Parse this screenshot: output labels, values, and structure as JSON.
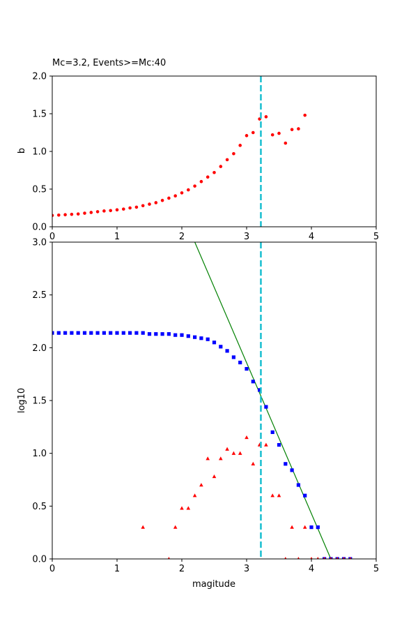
{
  "chart_data": [
    {
      "type": "scatter",
      "title": "Mc=3.2, Events>=Mc:40",
      "xlabel": "",
      "ylabel": "b",
      "xlim": [
        0,
        5
      ],
      "ylim": [
        0,
        2
      ],
      "xticks": [
        "0",
        "1",
        "2",
        "3",
        "4",
        "5"
      ],
      "yticks": [
        "0.0",
        "0.5",
        "1.0",
        "1.5",
        "2.0"
      ],
      "vline": {
        "x": 3.22,
        "color": "#17becf",
        "style": "dashed"
      },
      "series": [
        {
          "marker": "circle",
          "color": "#ff0000",
          "x": [
            0.0,
            0.1,
            0.2,
            0.3,
            0.4,
            0.5,
            0.6,
            0.7,
            0.8,
            0.9,
            1.0,
            1.1,
            1.2,
            1.3,
            1.4,
            1.5,
            1.6,
            1.7,
            1.8,
            1.9,
            2.0,
            2.1,
            2.2,
            2.3,
            2.4,
            2.5,
            2.6,
            2.7,
            2.8,
            2.9,
            3.0,
            3.1,
            3.2,
            3.3,
            3.4,
            3.5,
            3.6,
            3.7,
            3.8,
            3.9
          ],
          "y": [
            0.15,
            0.155,
            0.16,
            0.165,
            0.17,
            0.18,
            0.19,
            0.2,
            0.21,
            0.215,
            0.225,
            0.235,
            0.25,
            0.26,
            0.28,
            0.3,
            0.32,
            0.35,
            0.38,
            0.41,
            0.45,
            0.49,
            0.54,
            0.6,
            0.66,
            0.72,
            0.8,
            0.89,
            0.97,
            1.08,
            1.21,
            1.25,
            1.43,
            1.46,
            1.22,
            1.24,
            1.11,
            1.29,
            1.3,
            1.48
          ]
        }
      ]
    },
    {
      "type": "scatter",
      "title": "",
      "xlabel": "magitude",
      "ylabel": "log10",
      "xlim": [
        0,
        5
      ],
      "ylim": [
        0,
        3
      ],
      "xticks": [
        "0",
        "1",
        "2",
        "3",
        "4",
        "5"
      ],
      "yticks": [
        "0.0",
        "0.5",
        "1.0",
        "1.5",
        "2.0",
        "2.5",
        "3.0"
      ],
      "vline": {
        "x": 3.22,
        "color": "#17becf",
        "style": "dashed"
      },
      "fit_line": {
        "x": [
          2.2,
          4.3
        ],
        "y": [
          3.0,
          0.0
        ],
        "color": "#008000"
      },
      "series": [
        {
          "marker": "square",
          "color": "#0000ff",
          "x": [
            0.0,
            0.1,
            0.2,
            0.3,
            0.4,
            0.5,
            0.6,
            0.7,
            0.8,
            0.9,
            1.0,
            1.1,
            1.2,
            1.3,
            1.4,
            1.5,
            1.6,
            1.7,
            1.8,
            1.9,
            2.0,
            2.1,
            2.2,
            2.3,
            2.4,
            2.5,
            2.6,
            2.7,
            2.8,
            2.9,
            3.0,
            3.1,
            3.2,
            3.3,
            3.4,
            3.5,
            3.6,
            3.7,
            3.8,
            3.9,
            4.0,
            4.1,
            4.2,
            4.3,
            4.4,
            4.5,
            4.6
          ],
          "y": [
            2.14,
            2.14,
            2.14,
            2.14,
            2.14,
            2.14,
            2.14,
            2.14,
            2.14,
            2.14,
            2.14,
            2.14,
            2.14,
            2.14,
            2.14,
            2.13,
            2.13,
            2.13,
            2.13,
            2.12,
            2.12,
            2.11,
            2.1,
            2.09,
            2.08,
            2.05,
            2.01,
            1.97,
            1.91,
            1.86,
            1.8,
            1.68,
            1.6,
            1.44,
            1.2,
            1.08,
            0.9,
            0.84,
            0.7,
            0.6,
            0.3,
            0.3,
            0.0,
            0.0,
            0.0,
            0.0,
            0.0
          ]
        },
        {
          "marker": "triangle",
          "color": "#ff0000",
          "x": [
            1.4,
            1.8,
            1.9,
            2.0,
            2.1,
            2.2,
            2.3,
            2.4,
            2.5,
            2.6,
            2.7,
            2.8,
            2.9,
            3.0,
            3.1,
            3.2,
            3.3,
            3.4,
            3.5,
            3.6,
            3.7,
            3.8,
            3.9,
            4.0,
            4.1,
            4.2,
            4.3,
            4.4,
            4.5,
            4.6
          ],
          "y": [
            0.3,
            0.0,
            0.3,
            0.48,
            0.48,
            0.6,
            0.7,
            0.95,
            0.78,
            0.95,
            1.04,
            1.0,
            1.0,
            1.15,
            0.9,
            1.08,
            1.08,
            0.6,
            0.6,
            0.0,
            0.3,
            0.0,
            0.3,
            0.0,
            0.0,
            0.0,
            0.0,
            0.0,
            0.0,
            0.0
          ]
        }
      ]
    }
  ]
}
